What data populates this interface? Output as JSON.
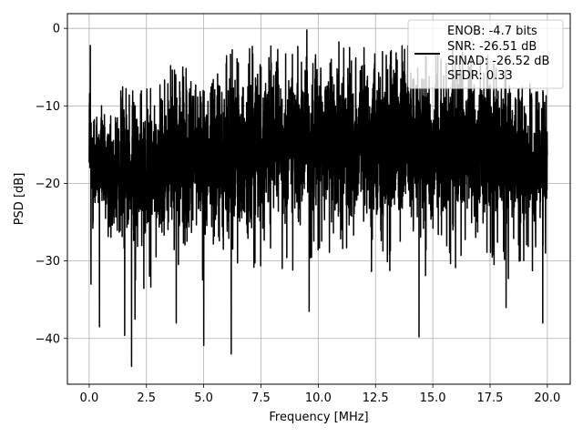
{
  "chart_data": {
    "type": "line",
    "title": "",
    "xlabel": "Frequency [MHz]",
    "ylabel": "PSD [dB]",
    "xlim": [
      -0.95,
      21.0
    ],
    "ylim": [
      -45.9,
      1.9
    ],
    "grid": true,
    "xticks": [
      0.0,
      2.5,
      5.0,
      7.5,
      10.0,
      12.5,
      15.0,
      17.5,
      20.0
    ],
    "xtick_labels": [
      "0.0",
      "2.5",
      "5.0",
      "7.5",
      "10.0",
      "12.5",
      "15.0",
      "17.5",
      "20.0"
    ],
    "yticks": [
      0,
      -10,
      -20,
      -30,
      -40
    ],
    "ytick_labels": [
      "0",
      "−10",
      "−20",
      "−30",
      "−40"
    ],
    "legend": {
      "placement": "top-right",
      "lines": [
        "ENOB: -4.7 bits",
        "SNR: -26.51 dB",
        "SINAD: -26.52 dB",
        "SFDR: 0.33"
      ]
    },
    "series": [
      {
        "color": "#000000",
        "x_range": [
          0.0,
          20.0
        ],
        "points": 4000,
        "envelope": {
          "x": [
            0.0,
            0.05,
            0.1,
            1.0,
            2.5,
            5.0,
            7.5,
            10.0,
            12.5,
            15.0,
            17.5,
            19.9,
            20.0
          ],
          "upper": [
            -2.2,
            -8.0,
            -8.5,
            -9.5,
            -8.0,
            -5.0,
            -4.0,
            -3.5,
            -3.5,
            -4.5,
            -5.0,
            -9.0,
            -10.0
          ],
          "lower": [
            -19.0,
            -22.0,
            -25.0,
            -28.0,
            -28.0,
            -27.0,
            -26.0,
            -25.0,
            -26.0,
            -26.0,
            -26.0,
            -27.0,
            -20.0
          ]
        },
        "notable_points": [
          {
            "x": 0.05,
            "y": -2.2
          },
          {
            "x": 0.08,
            "y": -33.0
          },
          {
            "x": 0.45,
            "y": -38.5
          },
          {
            "x": 1.55,
            "y": -39.6
          },
          {
            "x": 1.85,
            "y": -43.6
          },
          {
            "x": 2.0,
            "y": -37.5
          },
          {
            "x": 3.8,
            "y": -38.0
          },
          {
            "x": 5.0,
            "y": -40.9
          },
          {
            "x": 6.2,
            "y": -42.0
          },
          {
            "x": 9.6,
            "y": -36.5
          },
          {
            "x": 9.5,
            "y": -0.2
          },
          {
            "x": 14.4,
            "y": -39.8
          },
          {
            "x": 18.2,
            "y": -36.0
          },
          {
            "x": 19.8,
            "y": -38.0
          }
        ]
      }
    ]
  }
}
